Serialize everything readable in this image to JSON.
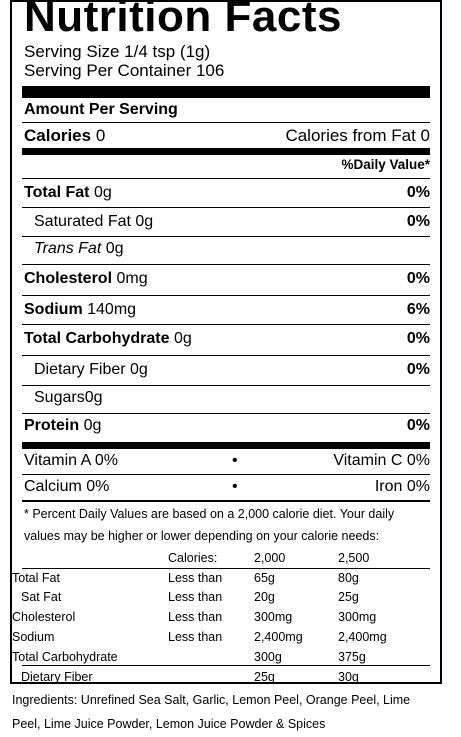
{
  "title": "Nutrition Facts",
  "serving_size": "Serving Size 1/4 tsp (1g)",
  "servings": "Serving Per Container 106",
  "amount_per_serving": "Amount Per Serving",
  "calories": {
    "label": "Calories",
    "value": "0",
    "from_fat": "Calories from Fat 0"
  },
  "daily_value_header": "%Daily Value*",
  "nutrients": [
    {
      "label": "Total Fat",
      "amount": "0g",
      "dv": "0%"
    },
    {
      "label": "Saturated Fat",
      "amount": "0g",
      "dv": "0%"
    },
    {
      "label": "Trans Fat",
      "amount": "0g",
      "dv": ""
    },
    {
      "label": "Cholesterol",
      "amount": "0mg",
      "dv": "0%"
    },
    {
      "label": "Sodium",
      "amount": "140mg",
      "dv": "6%"
    },
    {
      "label": "Total Carbohydrate",
      "amount": "0g",
      "dv": "0%"
    },
    {
      "label": "Dietary Fiber",
      "amount": "0g",
      "dv": "0%"
    },
    {
      "label": "Sugars",
      "amount": "0g",
      "dv": ""
    },
    {
      "label": "Protein",
      "amount": "0g",
      "dv": "0%"
    }
  ],
  "vitamins": {
    "vitamin_a": "Vitamin A 0%",
    "vitamin_c": "Vitamin C 0%",
    "calcium": "Calcium 0%",
    "iron": "Iron 0%",
    "bullet": "•"
  },
  "footnote_line1": "* Percent Daily Values are based on a 2,000 calorie diet. Your daily",
  "footnote_line2": "values may be higher or lower depending on your calorie needs:",
  "dv_table": {
    "header": [
      "",
      "Calories:",
      "2,000",
      "2,500"
    ],
    "rows": [
      [
        "Total Fat",
        "Less than",
        "65g",
        "80g"
      ],
      [
        "Sat Fat",
        "Less than",
        "20g",
        "25g"
      ],
      [
        "Cholesterol",
        "Less than",
        "300mg",
        "300mg"
      ],
      [
        "Sodium",
        "Less than",
        "2,400mg",
        "2,400mg"
      ],
      [
        "Total Carbohydrate",
        "",
        "300g",
        "375g"
      ],
      [
        "Dietary Fiber",
        "",
        "25g",
        "30g"
      ]
    ]
  },
  "ingredients_line1": "Ingredients: Unrefined Sea Salt, Garlic, Lemon Peel, Orange Peel, Lime",
  "ingredients_line2": "Peel, Lime Juice Powder, Lemon Juice Powder & Spices"
}
